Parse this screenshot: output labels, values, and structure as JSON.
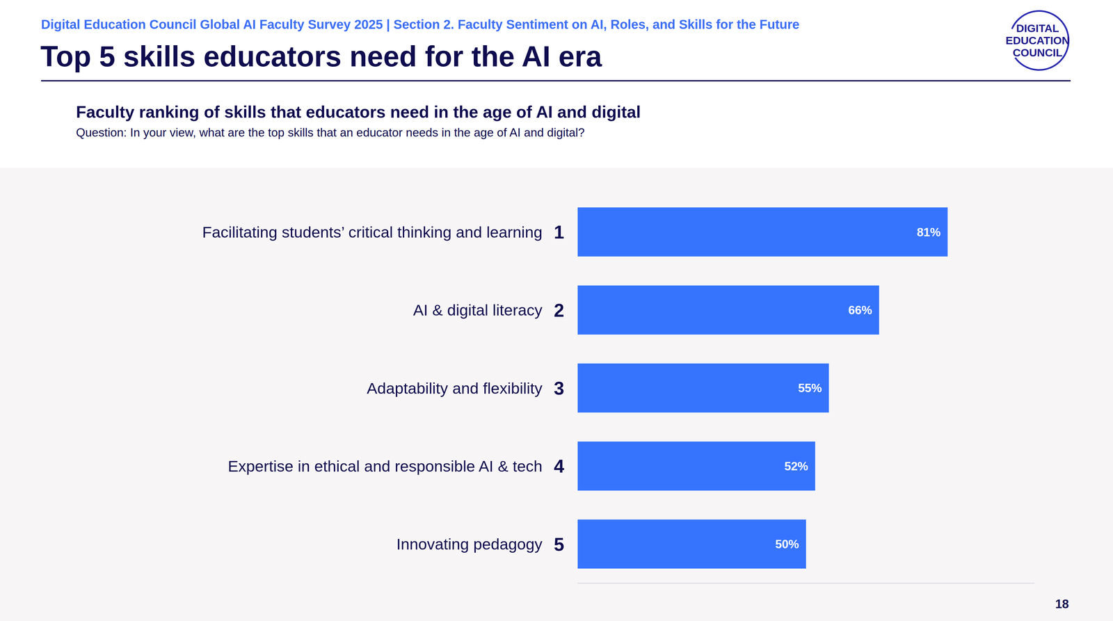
{
  "header": {
    "section": "Digital Education Council Global AI Faculty Survey 2025 | Section 2. Faculty Sentiment on AI, Roles, and Skills for the Future",
    "title": "Top 5 skills educators need for the AI era",
    "logo": [
      "DIGITAL",
      "EDUCATION",
      "COUNCIL"
    ],
    "page": "18"
  },
  "chart_data": {
    "type": "bar",
    "orientation": "horizontal",
    "title": "Faculty ranking of skills that educators need in the age of AI and digital",
    "subtitle": "Question: In your view, what are the top skills that an educator needs in the age of AI and digital?",
    "categories": [
      "Facilitating students’ critical thinking and learning",
      "AI & digital literacy",
      "Adaptability and flexibility",
      "Expertise in ethical and responsible AI & tech",
      "Innovating pedagogy"
    ],
    "ranks": [
      1,
      2,
      3,
      4,
      5
    ],
    "values": [
      81,
      66,
      55,
      52,
      50
    ],
    "value_labels": [
      "81%",
      "66%",
      "55%",
      "52%",
      "50%"
    ],
    "color": "#3674fd",
    "xlim": [
      0,
      100
    ],
    "data_labels": true,
    "tick_labels": "y",
    "grid": false
  }
}
